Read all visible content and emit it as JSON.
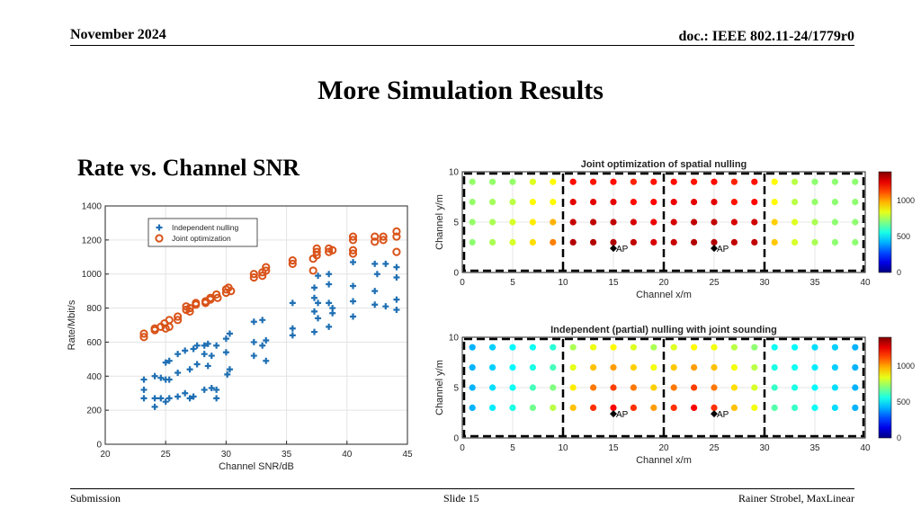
{
  "header": {
    "date": "November 2024",
    "doc": "doc.: IEEE 802.11-24/1779r0"
  },
  "slide": {
    "title": "More Simulation Results",
    "subtitle": "Rate vs. Channel SNR"
  },
  "footer": {
    "left": "Submission",
    "center": "Slide 15",
    "right": "Rainer Strobel, MaxLinear"
  },
  "colors": {
    "independent": "#1f6fb3",
    "joint": "#d95319"
  },
  "chart_data": [
    {
      "type": "scatter",
      "xlabel": "Channel SNR/dB",
      "ylabel": "Rate/Mbit/s",
      "xlim": [
        20,
        45
      ],
      "ylim": [
        0,
        1400
      ],
      "xticks": [
        20,
        25,
        30,
        35,
        40,
        45
      ],
      "yticks": [
        0,
        200,
        400,
        600,
        800,
        1000,
        1200,
        1400
      ],
      "grid": true,
      "legend_position": "top-left",
      "series": [
        {
          "name": "Independent nulling",
          "marker": "plus",
          "points": [
            [
              23.2,
              380
            ],
            [
              23.2,
              320
            ],
            [
              23.2,
              270
            ],
            [
              24.1,
              400
            ],
            [
              24.1,
              270
            ],
            [
              24.1,
              220
            ],
            [
              24.6,
              390
            ],
            [
              24.6,
              270
            ],
            [
              25.0,
              480
            ],
            [
              25.0,
              380
            ],
            [
              25.0,
              250
            ],
            [
              25.3,
              490
            ],
            [
              25.3,
              380
            ],
            [
              25.3,
              270
            ],
            [
              26.0,
              420
            ],
            [
              26.0,
              280
            ],
            [
              26.0,
              530
            ],
            [
              26.6,
              550
            ],
            [
              26.6,
              300
            ],
            [
              27.0,
              440
            ],
            [
              27.0,
              270
            ],
            [
              27.3,
              560
            ],
            [
              27.3,
              280
            ],
            [
              27.6,
              470
            ],
            [
              27.6,
              580
            ],
            [
              28.2,
              580
            ],
            [
              28.2,
              530
            ],
            [
              28.2,
              320
            ],
            [
              28.5,
              590
            ],
            [
              28.5,
              460
            ],
            [
              28.8,
              520
            ],
            [
              28.8,
              330
            ],
            [
              29.2,
              580
            ],
            [
              29.2,
              320
            ],
            [
              29.2,
              270
            ],
            [
              30.0,
              620
            ],
            [
              30.0,
              540
            ],
            [
              30.1,
              410
            ],
            [
              30.3,
              650
            ],
            [
              30.3,
              440
            ],
            [
              32.3,
              720
            ],
            [
              32.3,
              600
            ],
            [
              32.3,
              520
            ],
            [
              33.0,
              730
            ],
            [
              33.0,
              580
            ],
            [
              33.3,
              610
            ],
            [
              33.3,
              490
            ],
            [
              35.5,
              830
            ],
            [
              35.5,
              680
            ],
            [
              35.5,
              640
            ],
            [
              37.3,
              920
            ],
            [
              37.3,
              860
            ],
            [
              37.3,
              780
            ],
            [
              37.3,
              660
            ],
            [
              37.6,
              990
            ],
            [
              37.6,
              830
            ],
            [
              37.6,
              740
            ],
            [
              38.5,
              1000
            ],
            [
              38.5,
              940
            ],
            [
              38.5,
              830
            ],
            [
              38.5,
              690
            ],
            [
              38.8,
              800
            ],
            [
              38.8,
              770
            ],
            [
              40.5,
              1070
            ],
            [
              40.5,
              930
            ],
            [
              40.5,
              840
            ],
            [
              40.5,
              750
            ],
            [
              42.3,
              1060
            ],
            [
              42.3,
              900
            ],
            [
              42.3,
              820
            ],
            [
              42.5,
              1000
            ],
            [
              43.2,
              1060
            ],
            [
              43.2,
              810
            ],
            [
              44.1,
              1040
            ],
            [
              44.1,
              980
            ],
            [
              44.1,
              850
            ],
            [
              44.1,
              790
            ]
          ]
        },
        {
          "name": "Joint optimization",
          "marker": "circle",
          "points": [
            [
              23.2,
              650
            ],
            [
              23.2,
              630
            ],
            [
              24.1,
              680
            ],
            [
              24.1,
              670
            ],
            [
              24.6,
              690
            ],
            [
              24.9,
              710
            ],
            [
              25.0,
              680
            ],
            [
              25.3,
              730
            ],
            [
              25.3,
              690
            ],
            [
              26.0,
              750
            ],
            [
              26.0,
              730
            ],
            [
              26.7,
              790
            ],
            [
              26.7,
              810
            ],
            [
              27.0,
              800
            ],
            [
              27.0,
              780
            ],
            [
              27.5,
              830
            ],
            [
              27.5,
              820
            ],
            [
              28.3,
              840
            ],
            [
              28.3,
              830
            ],
            [
              28.7,
              860
            ],
            [
              28.7,
              850
            ],
            [
              29.2,
              880
            ],
            [
              29.3,
              860
            ],
            [
              30.0,
              910
            ],
            [
              30.0,
              890
            ],
            [
              30.2,
              920
            ],
            [
              30.4,
              900
            ],
            [
              32.3,
              1000
            ],
            [
              32.3,
              980
            ],
            [
              33.0,
              1010
            ],
            [
              33.0,
              990
            ],
            [
              33.3,
              1040
            ],
            [
              33.3,
              1020
            ],
            [
              35.5,
              1080
            ],
            [
              35.5,
              1060
            ],
            [
              37.2,
              1090
            ],
            [
              37.2,
              1020
            ],
            [
              37.5,
              1130
            ],
            [
              37.5,
              1110
            ],
            [
              37.5,
              1150
            ],
            [
              38.5,
              1150
            ],
            [
              38.5,
              1130
            ],
            [
              38.8,
              1140
            ],
            [
              40.5,
              1220
            ],
            [
              40.5,
              1200
            ],
            [
              40.5,
              1140
            ],
            [
              40.5,
              1120
            ],
            [
              42.3,
              1220
            ],
            [
              42.3,
              1190
            ],
            [
              43.0,
              1220
            ],
            [
              43.0,
              1200
            ],
            [
              44.1,
              1250
            ],
            [
              44.1,
              1220
            ],
            [
              44.1,
              1130
            ]
          ]
        }
      ]
    },
    {
      "type": "heatmap",
      "title": "Joint optimization of spatial nulling",
      "xlabel": "Channel x/m",
      "ylabel": "Channel y/m",
      "xlim": [
        0,
        40
      ],
      "ylim": [
        0,
        10
      ],
      "xticks": [
        0,
        5,
        10,
        15,
        20,
        25,
        30,
        35,
        40
      ],
      "yticks": [
        0,
        5,
        10
      ],
      "colorbar_ticks": [
        0,
        500,
        1000
      ],
      "colorbar_max": 1400,
      "dashed_boundaries_x": [
        10,
        20,
        30
      ],
      "access_points": [
        {
          "label": "AP",
          "x": 15,
          "y": 0.5
        },
        {
          "label": "AP",
          "x": 25,
          "y": 0.5
        }
      ],
      "grid_x": [
        1,
        3,
        5,
        7,
        9,
        11,
        13,
        15,
        17,
        19,
        21,
        23,
        25,
        27,
        29,
        31,
        33,
        35,
        37,
        39
      ],
      "grid_y": [
        9,
        7,
        5,
        3
      ],
      "values": [
        [
          730,
          730,
          730,
          830,
          880,
          1210,
          1200,
          1210,
          1180,
          1200,
          1210,
          1200,
          1210,
          1180,
          1200,
          880,
          780,
          720,
          720,
          720
        ],
        [
          730,
          750,
          780,
          880,
          880,
          1260,
          1260,
          1260,
          1210,
          1220,
          1250,
          1260,
          1260,
          1200,
          1220,
          880,
          780,
          730,
          720,
          720
        ],
        [
          730,
          760,
          820,
          900,
          980,
          1300,
          1310,
          1310,
          1280,
          1250,
          1280,
          1310,
          1310,
          1280,
          1290,
          940,
          830,
          760,
          720,
          720
        ],
        [
          720,
          760,
          820,
          920,
          1050,
          1330,
          1330,
          1330,
          1310,
          1280,
          1300,
          1330,
          1330,
          1310,
          1310,
          950,
          820,
          760,
          720,
          720
        ]
      ]
    },
    {
      "type": "heatmap",
      "title": "Independent (partial) nulling with joint sounding",
      "xlabel": "Channel x/m",
      "ylabel": "Channel y/m",
      "xlim": [
        0,
        40
      ],
      "ylim": [
        0,
        10
      ],
      "xticks": [
        0,
        5,
        10,
        15,
        20,
        25,
        30,
        35,
        40
      ],
      "yticks": [
        0,
        5,
        10
      ],
      "colorbar_ticks": [
        0,
        500,
        1000
      ],
      "colorbar_max": 1400,
      "dashed_boundaries_x": [
        10,
        20,
        30
      ],
      "access_points": [
        {
          "label": "AP",
          "x": 15,
          "y": 0.5
        },
        {
          "label": "AP",
          "x": 25,
          "y": 0.5
        }
      ],
      "grid_x": [
        1,
        3,
        5,
        7,
        9,
        11,
        13,
        15,
        17,
        19,
        21,
        23,
        25,
        27,
        29,
        31,
        33,
        35,
        37,
        39
      ],
      "grid_y": [
        9,
        7,
        5,
        3
      ],
      "values": [
        [
          420,
          460,
          520,
          540,
          580,
          760,
          850,
          880,
          830,
          760,
          830,
          880,
          860,
          780,
          720,
          540,
          520,
          480,
          460,
          420
        ],
        [
          420,
          460,
          520,
          560,
          620,
          840,
          960,
          1010,
          940,
          860,
          950,
          1010,
          960,
          860,
          780,
          560,
          540,
          500,
          460,
          420
        ],
        [
          420,
          480,
          540,
          620,
          700,
          900,
          1060,
          1140,
          1060,
          940,
          1060,
          1140,
          1060,
          920,
          820,
          600,
          560,
          520,
          480,
          420
        ],
        [
          420,
          500,
          560,
          680,
          780,
          960,
          1160,
          1230,
          1160,
          1010,
          1160,
          1230,
          1160,
          960,
          860,
          640,
          600,
          540,
          480,
          420
        ]
      ]
    }
  ]
}
